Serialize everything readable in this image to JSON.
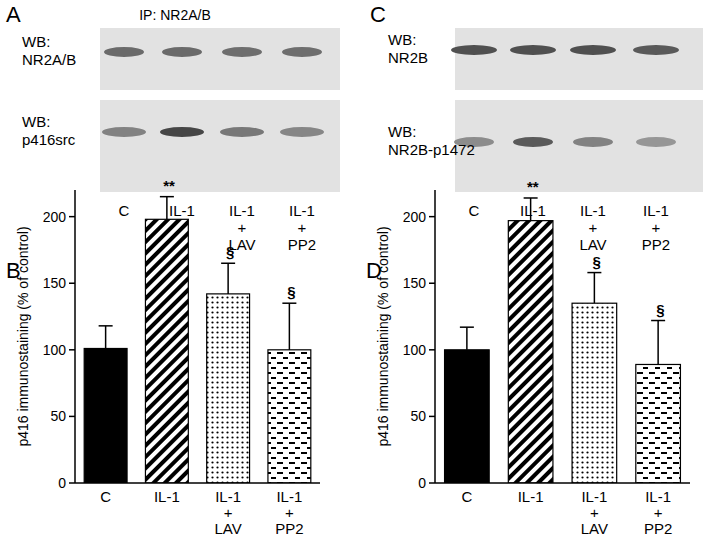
{
  "panels": [
    {
      "title": "A",
      "header": "IP: NR2A/B",
      "rows": [
        "WB:\nNR2A/B",
        "WB:\np416src"
      ],
      "lanes": [
        "C",
        "IL-1",
        "IL-1\n+\nLAV",
        "IL-1\n+\nPP2"
      ]
    },
    {
      "title": "C",
      "rows": [
        "WB:\nNR2B",
        "WB:\nNR2B-p1472"
      ],
      "lanes": [
        "C",
        "IL-1",
        "IL-1\n+\nLAV",
        "IL-1\n+\nPP2"
      ]
    }
  ],
  "chart_data": [
    {
      "type": "bar",
      "title": "B",
      "y_label": "p416 immunostaining (% of control)",
      "categories": [
        "C",
        "IL-1",
        "IL-1\n+\nLAV",
        "IL-1\n+\nPP2"
      ],
      "values": [
        101,
        198,
        142,
        100
      ],
      "errors": [
        17,
        17,
        23,
        35
      ],
      "significance": [
        null,
        "**",
        "§",
        "§"
      ],
      "colors": [
        "#000000",
        "#000000",
        "#000000",
        "#000000"
      ],
      "ylim": [
        0,
        220
      ],
      "yticks": [
        0,
        50,
        100,
        150,
        200
      ],
      "grid": false
    },
    {
      "type": "bar",
      "title": "D",
      "y_label": "p416 immunostaining (% of control)",
      "categories": [
        "C",
        "IL-1",
        "IL-1\n+\nLAV",
        "IL-1\n+\nPP2"
      ],
      "values": [
        100,
        197,
        135,
        89
      ],
      "errors": [
        17,
        17,
        23,
        33
      ],
      "significance": [
        null,
        "**",
        "§",
        "§"
      ],
      "colors": [
        "#000000",
        "#000000",
        "#000000",
        "#000000"
      ],
      "ylim": [
        0,
        220
      ],
      "yticks": [
        0,
        50,
        100,
        150,
        200
      ],
      "grid": false
    }
  ]
}
